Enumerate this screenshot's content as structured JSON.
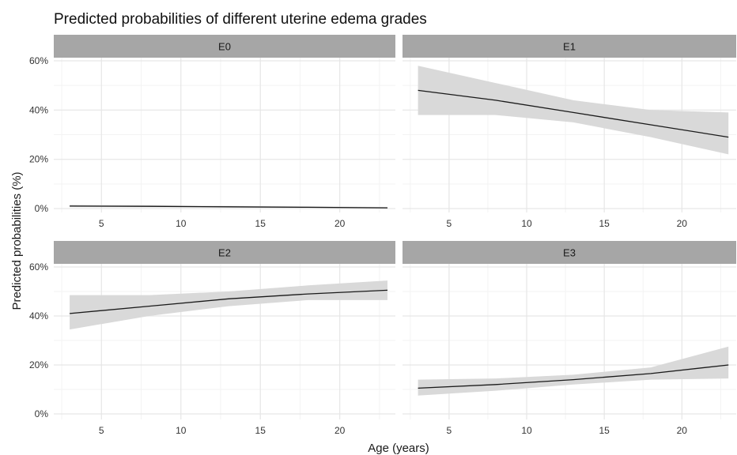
{
  "title": "Predicted probabilities of different uterine edema grades",
  "colors": {
    "strip_fill": "#a6a6a6",
    "band_fill": "#d9d9d9",
    "line": "#1a1a1a",
    "grid_major": "#e6e6e6",
    "grid_minor": "#f3f3f3"
  },
  "chart_data": {
    "type": "line",
    "layout": "facet-grid-2x2",
    "xlabel": "Age (years)",
    "ylabel": "Predicted probabilities (%)",
    "xlim": [
      2,
      23.5
    ],
    "ylim": [
      0,
      60
    ],
    "x_ticks": [
      5,
      10,
      15,
      20
    ],
    "x_tick_labels": [
      "5",
      "10",
      "15",
      "20"
    ],
    "y_ticks": [
      0,
      20,
      40,
      60
    ],
    "y_tick_labels": [
      "0%",
      "20%",
      "40%",
      "60%"
    ],
    "grid": true,
    "legend": "none",
    "panels": [
      {
        "name": "E0",
        "x": [
          3,
          8,
          13,
          18,
          23
        ],
        "y": [
          1.0,
          0.9,
          0.7,
          0.5,
          0.3
        ],
        "lower": [
          0.6,
          0.5,
          0.4,
          0.2,
          0.1
        ],
        "upper": [
          1.5,
          1.3,
          1.1,
          0.9,
          0.6
        ]
      },
      {
        "name": "E1",
        "x": [
          3,
          8,
          13,
          18,
          23
        ],
        "y": [
          48,
          44,
          39,
          34,
          29
        ],
        "lower": [
          38,
          38,
          35,
          29,
          22
        ],
        "upper": [
          58,
          51,
          44,
          40,
          39
        ]
      },
      {
        "name": "E2",
        "x": [
          3,
          8,
          13,
          18,
          23
        ],
        "y": [
          41,
          44,
          47,
          49,
          50.5
        ],
        "lower": [
          34.5,
          40,
          44,
          46.5,
          46.5
        ],
        "upper": [
          48.5,
          48.5,
          50,
          52.5,
          54.5
        ]
      },
      {
        "name": "E3",
        "x": [
          3,
          8,
          13,
          18,
          23
        ],
        "y": [
          10.5,
          12,
          14,
          16.5,
          20
        ],
        "lower": [
          7.5,
          9.5,
          12,
          14,
          14.5
        ],
        "upper": [
          14,
          14.5,
          16,
          19,
          27.5
        ]
      }
    ]
  }
}
